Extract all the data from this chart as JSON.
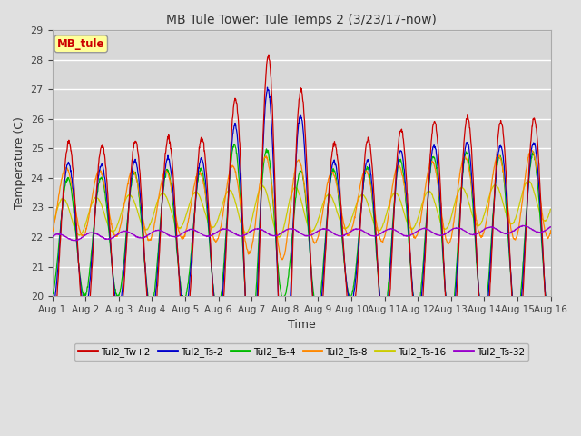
{
  "title": "MB Tule Tower: Tule Temps 2 (3/23/17-now)",
  "xlabel": "Time",
  "ylabel": "Temperature (C)",
  "ylim": [
    20.0,
    29.0
  ],
  "yticks": [
    20.0,
    21.0,
    22.0,
    23.0,
    24.0,
    25.0,
    26.0,
    27.0,
    28.0,
    29.0
  ],
  "xtick_labels": [
    "Aug 1",
    "Aug 2",
    "Aug 3",
    "Aug 4",
    "Aug 5",
    "Aug 6",
    "Aug 7",
    "Aug 8",
    "Aug 9",
    "Aug 10",
    "Aug 11",
    "Aug 12",
    "Aug 13",
    "Aug 14",
    "Aug 15",
    "Aug 16"
  ],
  "legend_label": "MB_tule",
  "series_labels": [
    "Tul2_Tw+2",
    "Tul2_Ts-2",
    "Tul2_Ts-4",
    "Tul2_Ts-8",
    "Tul2_Ts-16",
    "Tul2_Ts-32"
  ],
  "series_colors": [
    "#cc0000",
    "#0000cc",
    "#00bb00",
    "#ff8800",
    "#cccc00",
    "#9900cc"
  ],
  "background_color": "#e0e0e0",
  "plot_bg_color": "#d8d8d8",
  "grid_color": "#ffffff",
  "figsize": [
    6.4,
    4.8
  ],
  "dpi": 100
}
